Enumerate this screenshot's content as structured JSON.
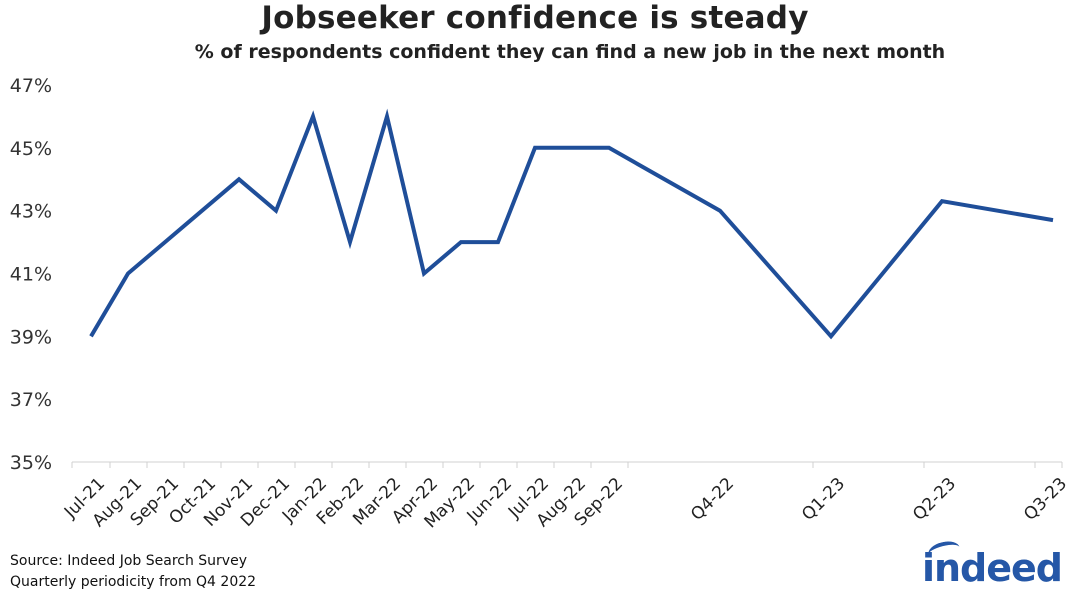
{
  "chart_data": {
    "type": "line",
    "title": "Jobseeker confidence is steady",
    "subtitle": "% of respondents confident they can find a new job in the next month",
    "xlabel": "",
    "ylabel": "",
    "ylim": [
      35,
      47
    ],
    "yticks": [
      "35%",
      "37%",
      "39%",
      "41%",
      "43%",
      "45%",
      "47%"
    ],
    "categories": [
      "Jul-21",
      "Aug-21",
      "Sep-21",
      "Oct-21",
      "Nov-21",
      "Dec-21",
      "Jan-22",
      "Feb-22",
      "Mar-22",
      "Apr-22",
      "May-22",
      "Jun-22",
      "Jul-22",
      "Aug-22",
      "Sep-22",
      "Q4-22",
      "Q1-23",
      "Q2-23",
      "Q3-23"
    ],
    "series": [
      {
        "values": [
          39,
          41,
          42,
          43,
          44,
          43,
          46,
          42,
          46,
          41,
          42,
          42,
          45,
          45,
          45,
          43,
          39,
          43.3,
          42.7
        ]
      }
    ],
    "line_color": "#1f4e99",
    "grid": false,
    "legend": "none"
  },
  "footer": {
    "source": "Source: Indeed Job Search Survey",
    "note": "Quarterly periodicity from Q4 2022",
    "logo": "indeed"
  }
}
